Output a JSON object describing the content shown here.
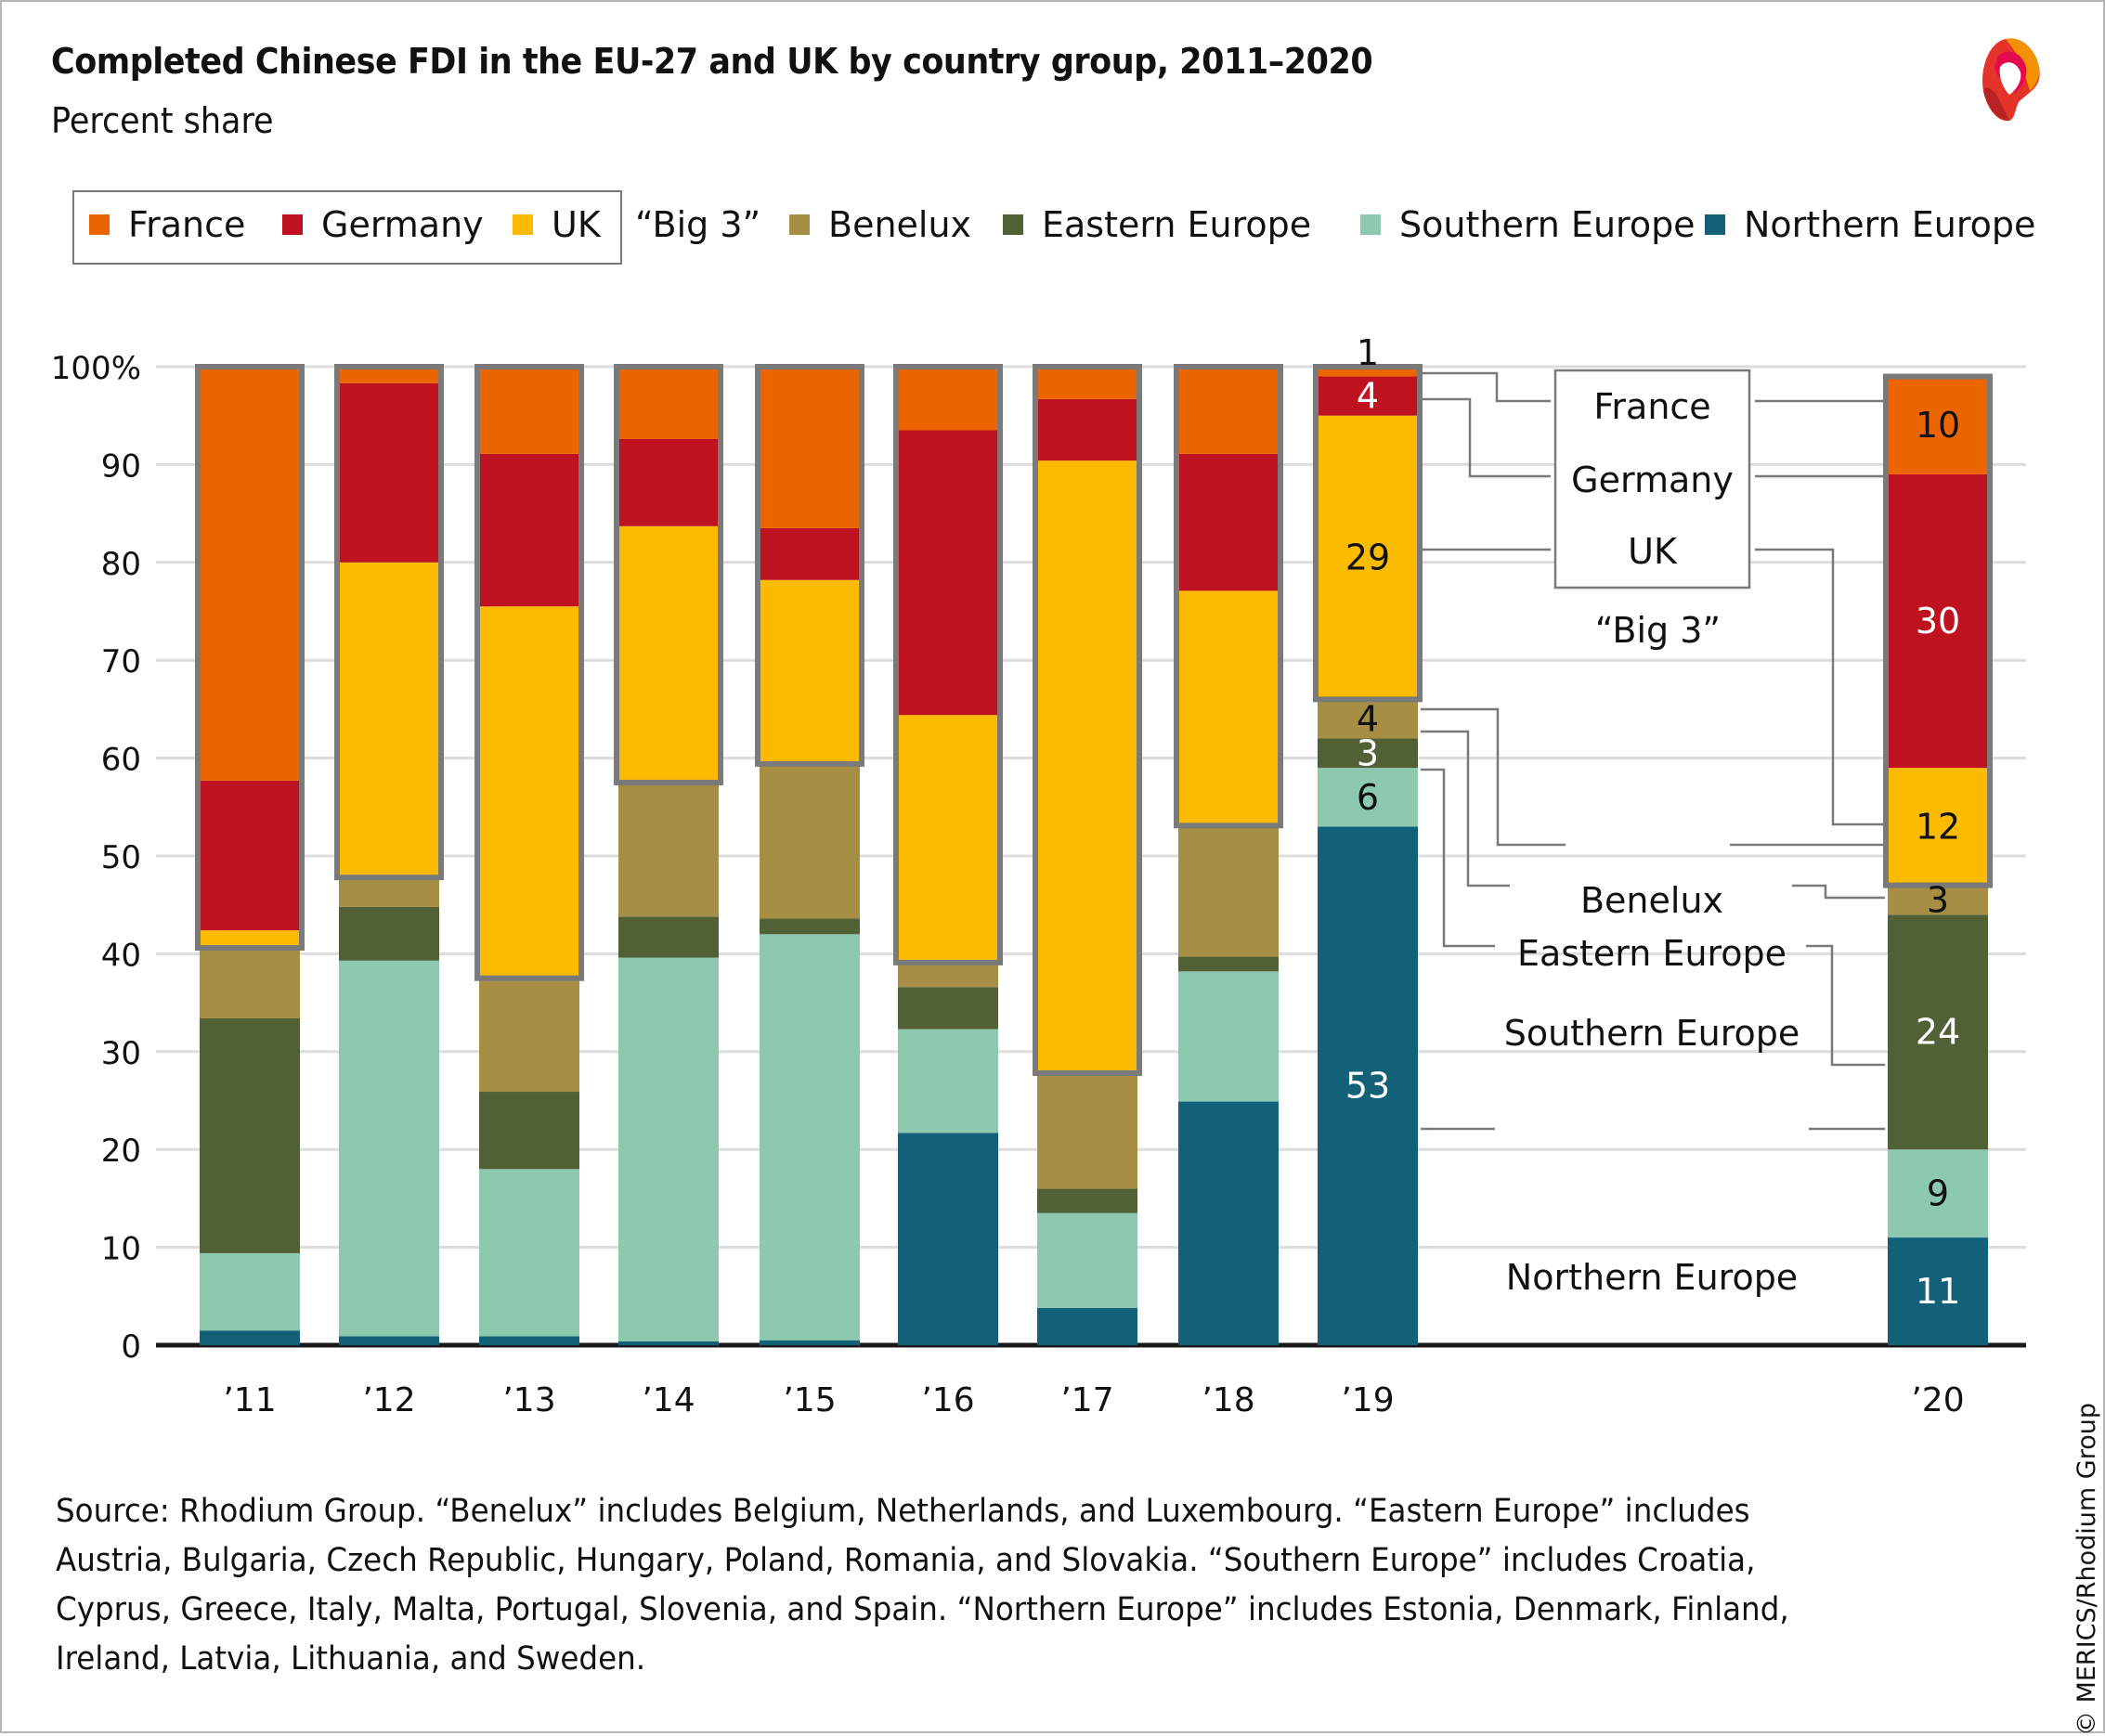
{
  "header": {
    "title": "Completed Chinese FDI in the EU-27 and UK by country group, 2011–2020",
    "subtitle": "Percent share",
    "logo": "merics-logo-icon"
  },
  "legend": {
    "big3_label": "“Big 3”",
    "items": [
      {
        "name": "France",
        "color": "#EC6500"
      },
      {
        "name": "Germany",
        "color": "#BE1220"
      },
      {
        "name": "UK",
        "color": "#FABB00"
      },
      {
        "name": "Benelux",
        "color": "#A68F45"
      },
      {
        "name": "Eastern Europe",
        "color": "#526135"
      },
      {
        "name": "Southern Europe",
        "color": "#8CC9AE"
      },
      {
        "name": "Northern Europe",
        "color": "#126178"
      }
    ]
  },
  "chart_data": {
    "type": "bar",
    "stacked": true,
    "title": "Completed Chinese FDI in the EU-27 and UK by country group, 2011–2020",
    "subtitle": "Percent share",
    "xlabel": "",
    "ylabel": "",
    "ylim": [
      0,
      100
    ],
    "yticks": [
      0,
      10,
      20,
      30,
      40,
      50,
      60,
      70,
      80,
      90,
      100
    ],
    "ytick_labels": [
      "0",
      "10",
      "20",
      "30",
      "40",
      "50",
      "60",
      "70",
      "80",
      "90",
      "100%"
    ],
    "grid": true,
    "legend_position": "top",
    "categories": [
      "’11",
      "’12",
      "’13",
      "’14",
      "’15",
      "’16",
      "’17",
      "’18",
      "’19",
      "’20"
    ],
    "big3_group": [
      "France",
      "Germany",
      "UK"
    ],
    "series": [
      {
        "name": "Northern Europe",
        "color": "#126178",
        "values": [
          1.5,
          0.9,
          0.9,
          0.4,
          0.5,
          21.7,
          3.8,
          24.9,
          53,
          11
        ]
      },
      {
        "name": "Southern Europe",
        "color": "#8CC9AE",
        "values": [
          7.9,
          38.4,
          17.1,
          39.2,
          41.5,
          10.6,
          9.7,
          13.3,
          6,
          9
        ]
      },
      {
        "name": "Eastern Europe",
        "color": "#526135",
        "values": [
          24.0,
          5.5,
          7.9,
          4.2,
          1.6,
          4.3,
          2.5,
          1.5,
          3,
          24
        ]
      },
      {
        "name": "Benelux",
        "color": "#A68F45",
        "values": [
          7.2,
          3.0,
          11.6,
          13.7,
          15.8,
          2.5,
          11.8,
          13.4,
          4,
          3
        ]
      },
      {
        "name": "UK",
        "color": "#FABB00",
        "values": [
          1.8,
          32.2,
          38.0,
          26.2,
          18.8,
          25.3,
          62.6,
          24.0,
          29,
          12
        ]
      },
      {
        "name": "Germany",
        "color": "#BE1220",
        "values": [
          15.3,
          18.3,
          15.6,
          8.9,
          5.3,
          29.1,
          6.3,
          14.0,
          4,
          30
        ]
      },
      {
        "name": "France",
        "color": "#EC6500",
        "values": [
          42.3,
          1.7,
          8.9,
          7.4,
          16.5,
          6.5,
          3.3,
          8.9,
          1,
          10
        ]
      }
    ],
    "data_labels": {
      "’19": {
        "Northern Europe": "53",
        "Southern Europe": "6",
        "Eastern Europe": "3",
        "Benelux": "4",
        "UK": "29",
        "Germany": "4",
        "France": "1"
      },
      "’20": {
        "Northern Europe": "11",
        "Southern Europe": "9",
        "Eastern Europe": "24",
        "Benelux": "3",
        "UK": "12",
        "Germany": "30",
        "France": "10"
      }
    },
    "annotations": {
      "big3_box": [
        "France",
        "Germany",
        "UK"
      ],
      "big3_caption": "“Big 3”",
      "group_labels": [
        "Benelux",
        "Eastern Europe",
        "Southern Europe",
        "Northern Europe"
      ]
    }
  },
  "footnote": {
    "lines": [
      "Source: Rhodium Group. “Benelux” includes Belgium, Netherlands, and Luxembourg. “Eastern Europe” includes",
      "Austria, Bulgaria, Czech Republic, Hungary, Poland, Romania, and Slovakia. “Southern Europe” includes Croatia,",
      "Cyprus, Greece, Italy, Malta, Portugal, Slovenia, and Spain. “Northern Europe” includes Estonia, Denmark, Finland,",
      "Ireland, Latvia, Lithuania, and Sweden."
    ]
  },
  "copyright": "© MERICS/Rhodium Group"
}
